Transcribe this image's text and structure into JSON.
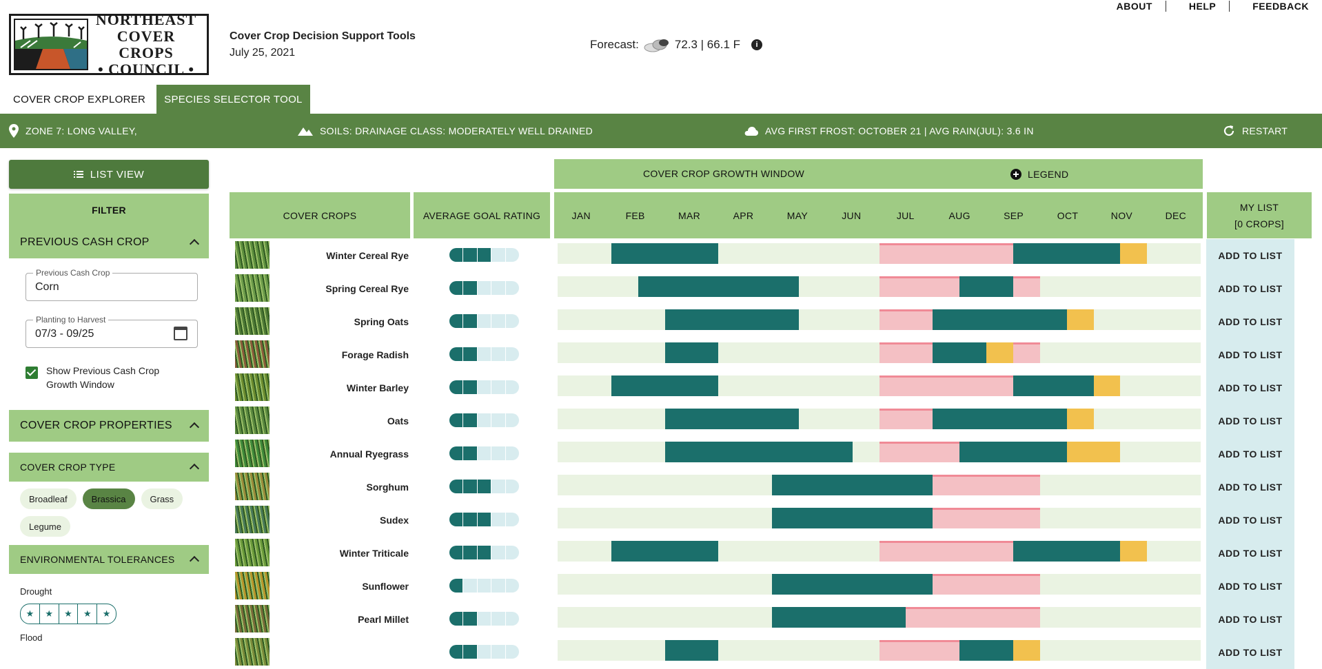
{
  "header": {
    "logo_text": [
      "NORTHEAST",
      "COVER CROPS",
      "• COUNCIL •"
    ],
    "site_title": "Cover Crop Decision Support Tools",
    "date": "July 25, 2021",
    "forecast_label": "Forecast:",
    "forecast_value": "72.3 | 66.1 F",
    "nav": [
      "ABOUT",
      "HELP",
      "FEEDBACK"
    ]
  },
  "tabs": [
    "COVER CROP EXPLORER",
    "SPECIES SELECTOR TOOL"
  ],
  "infobar": {
    "zone": "ZONE 7: LONG VALLEY,",
    "soils": "SOILS: DRAINAGE CLASS: MODERATELY WELL DRAINED",
    "frost": "AVG FIRST FROST: OCTOBER 21 | AVG RAIN(JUL): 3.6 IN",
    "restart": "RESTART"
  },
  "sidebar": {
    "list_view": "LIST VIEW",
    "filter": "FILTER",
    "previous_cash_crop": "PREVIOUS CASH CROP",
    "cash_crop_label": "Previous Cash Crop",
    "cash_crop_value": "Corn",
    "planting_label": "Planting to Harvest",
    "planting_value": "07/3 - 09/25",
    "show_window": "Show Previous Cash Crop Growth Window",
    "properties": "COVER CROP PROPERTIES",
    "crop_type": "COVER CROP TYPE",
    "chips": [
      {
        "label": "Broadleaf",
        "selected": false
      },
      {
        "label": "Brassica",
        "selected": true
      },
      {
        "label": "Grass",
        "selected": false
      },
      {
        "label": "Legume",
        "selected": false
      }
    ],
    "env_tolerances": "ENVIRONMENTAL TOLERANCES",
    "drought": "Drought",
    "flood": "Flood"
  },
  "table": {
    "growth_window": "COVER CROP GROWTH WINDOW",
    "legend": "LEGEND",
    "col_crops": "COVER CROPS",
    "col_rating": "AVERAGE GOAL RATING",
    "months": [
      "JAN",
      "FEB",
      "MAR",
      "APR",
      "MAY",
      "JUN",
      "JUL",
      "AUG",
      "SEP",
      "OCT",
      "NOV",
      "DEC"
    ],
    "my_list": "MY LIST",
    "my_list_count": "[0 CROPS]",
    "add_label": "ADD TO LIST"
  },
  "colors": {
    "green_dark": "#598444",
    "green_light": "#9fcb84",
    "teal": "#1b6f6b",
    "yellow": "#f2c14e",
    "pink": "#f9c2cb"
  },
  "crops": [
    {
      "name": "Winter Cereal Rye",
      "rating": 3,
      "thumb": "#5e8f3e",
      "growth": [
        [
          1,
          3
        ],
        [
          8.5,
          10.5
        ]
      ],
      "flower": [
        [
          10.5,
          11
        ]
      ]
    },
    {
      "name": "Spring Cereal Rye",
      "rating": 2,
      "thumb": "#6c9b4a",
      "growth": [
        [
          1.5,
          4.5
        ],
        [
          7.5,
          8.5
        ]
      ],
      "flower": []
    },
    {
      "name": "Spring Oats",
      "rating": 2,
      "thumb": "#4f7a36",
      "growth": [
        [
          2,
          4.5
        ],
        [
          7,
          9.5
        ]
      ],
      "flower": [
        [
          9.5,
          10
        ]
      ]
    },
    {
      "name": "Forage Radish",
      "rating": 2,
      "thumb": "#8a5a3a",
      "growth": [
        [
          2,
          3
        ],
        [
          7,
          8
        ]
      ],
      "flower": [
        [
          8,
          8.5
        ]
      ]
    },
    {
      "name": "Winter Barley",
      "rating": 2,
      "thumb": "#6b8a2e",
      "growth": [
        [
          1,
          3
        ],
        [
          8.5,
          10
        ]
      ],
      "flower": [
        [
          10,
          10.5
        ]
      ]
    },
    {
      "name": "Oats",
      "rating": 2,
      "thumb": "#5c8a40",
      "growth": [
        [
          2,
          4.5
        ],
        [
          7,
          9.5
        ]
      ],
      "flower": [
        [
          9.5,
          10
        ]
      ]
    },
    {
      "name": "Annual Ryegrass",
      "rating": 2,
      "thumb": "#3f8a3a",
      "growth": [
        [
          2,
          5.5
        ],
        [
          7.5,
          9.5
        ]
      ],
      "flower": [
        [
          9.5,
          10.5
        ]
      ]
    },
    {
      "name": "Sorghum",
      "rating": 3,
      "thumb": "#9a8a3a",
      "growth": [
        [
          4,
          7
        ]
      ],
      "flower": []
    },
    {
      "name": "Sudex",
      "rating": 3,
      "thumb": "#4a7a5a",
      "growth": [
        [
          4,
          7
        ]
      ],
      "flower": []
    },
    {
      "name": "Winter Triticale",
      "rating": 3,
      "thumb": "#6a9a3a",
      "growth": [
        [
          1,
          3
        ],
        [
          8.5,
          10.5
        ]
      ],
      "flower": [
        [
          10.5,
          11
        ]
      ]
    },
    {
      "name": "Sunflower",
      "rating": 1,
      "thumb": "#b9952a",
      "growth": [
        [
          4,
          7
        ]
      ],
      "flower": []
    },
    {
      "name": "Pearl Millet",
      "rating": 2,
      "thumb": "#7a6a3a",
      "growth": [
        [
          4,
          6.5
        ]
      ],
      "flower": []
    },
    {
      "name": "",
      "rating": 2,
      "thumb": "#7a8a3a",
      "growth": [
        [
          2,
          3
        ],
        [
          7.5,
          8.5
        ]
      ],
      "flower": [
        [
          8.5,
          9
        ]
      ]
    }
  ],
  "cash_window": [
    6,
    9
  ]
}
